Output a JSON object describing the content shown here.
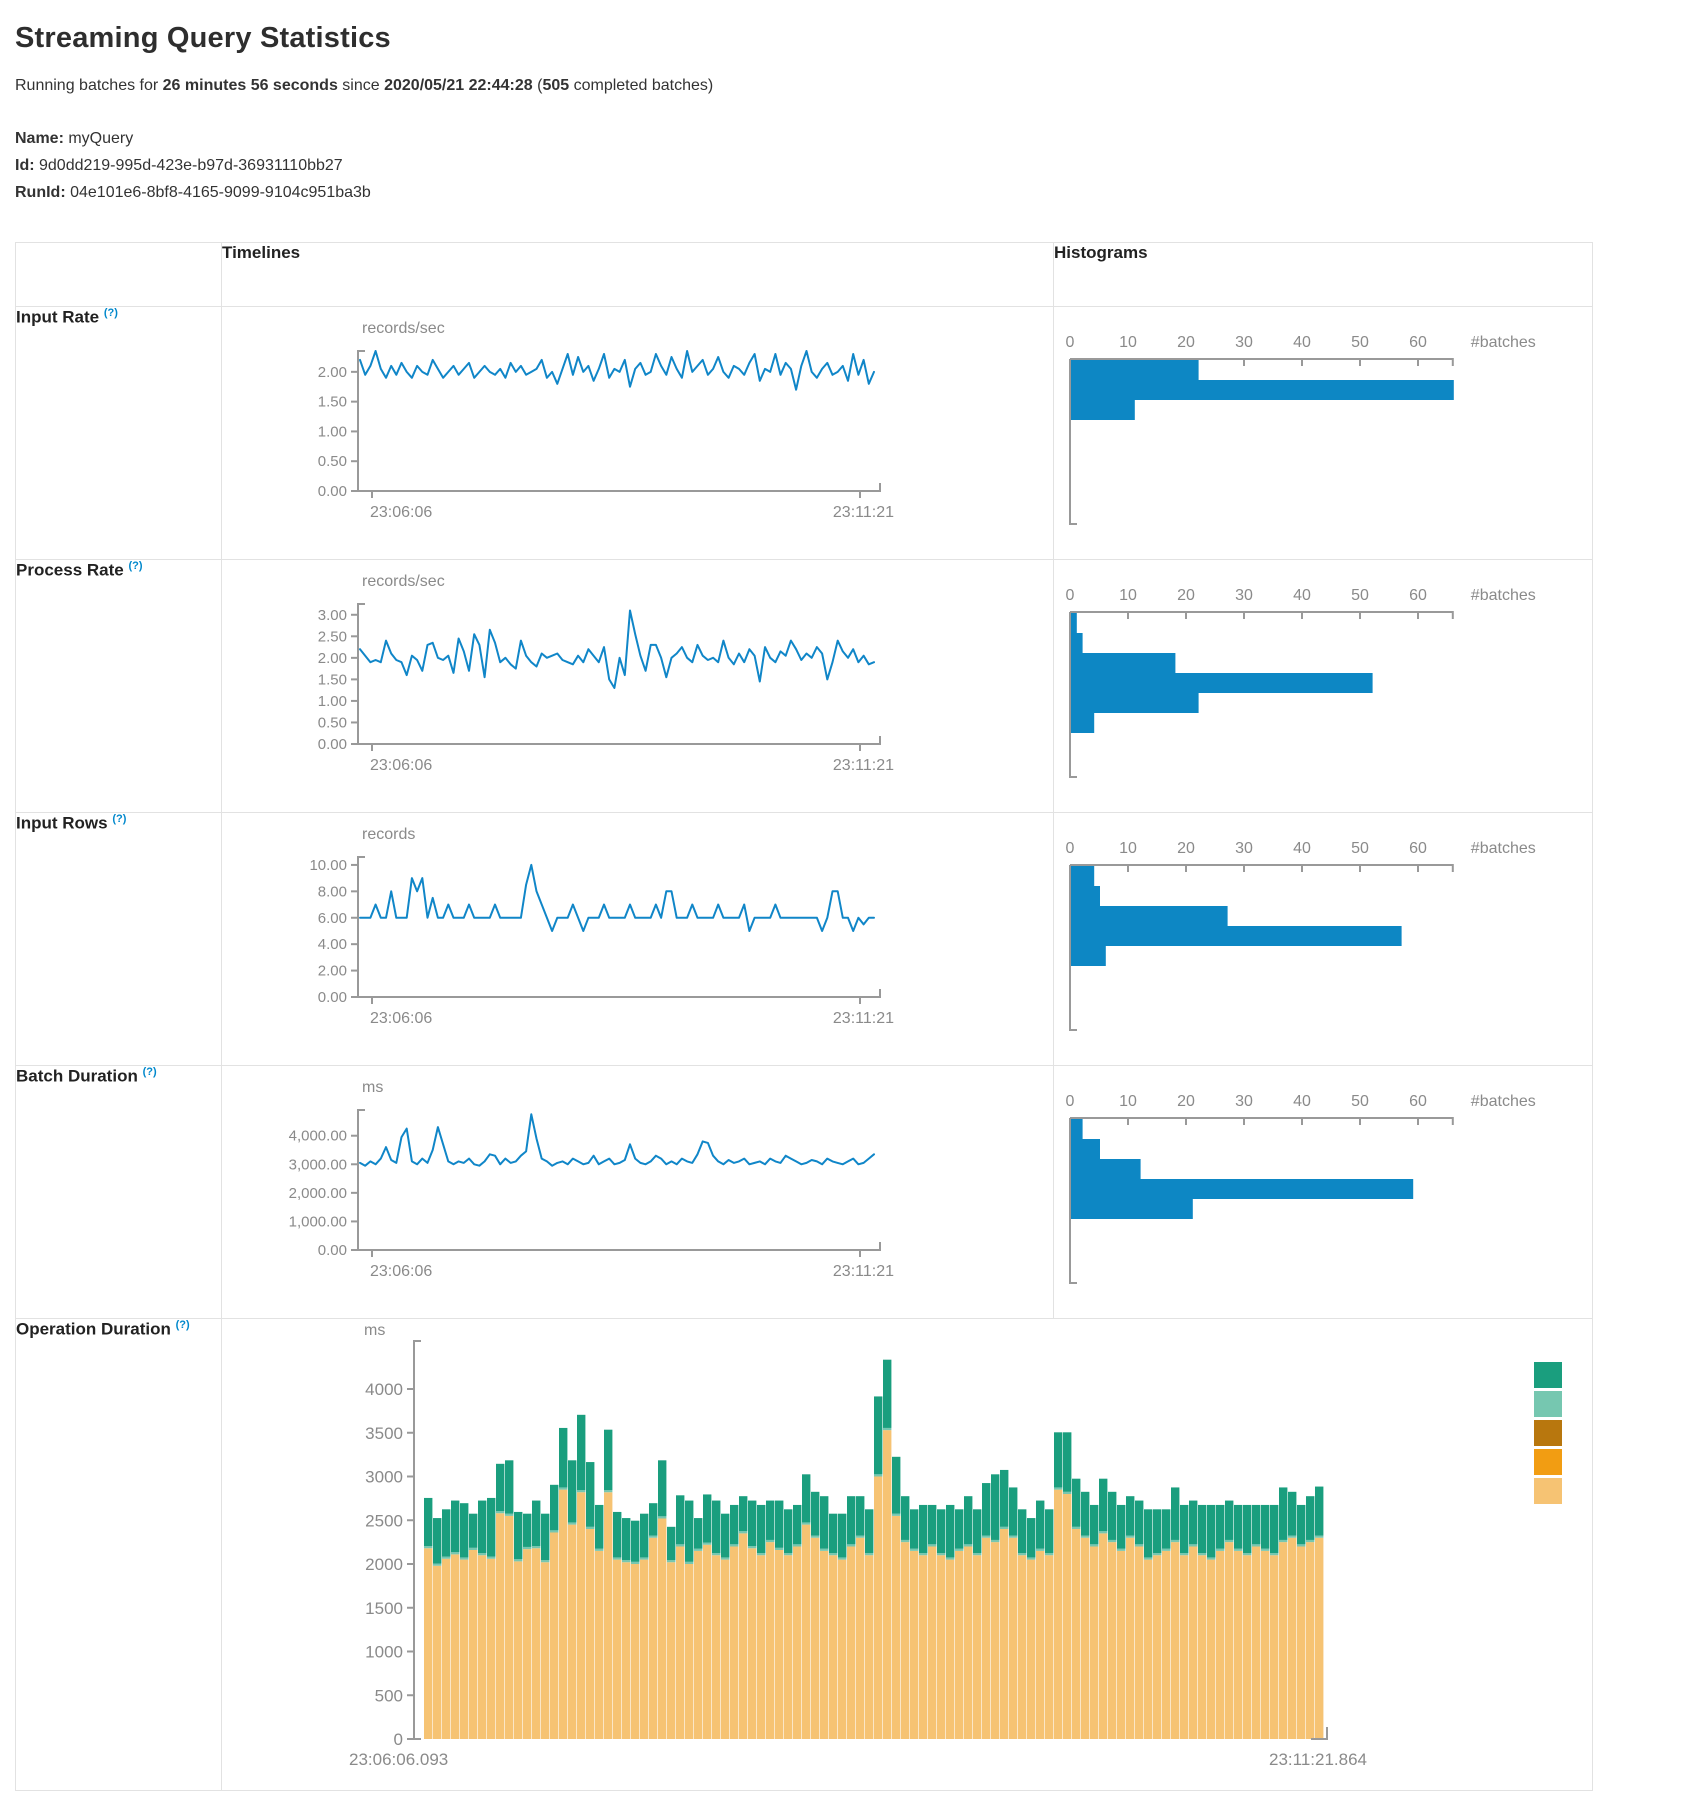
{
  "header": {
    "title": "Streaming Query Statistics",
    "running_prefix": "Running batches for ",
    "duration": "26 minutes 56 seconds",
    "since_text": " since ",
    "start_time": "2020/05/21 22:44:28",
    "paren_open": " (",
    "batches_count": "505",
    "batches_suffix": " completed batches)",
    "name_label": "Name:",
    "name_value": " myQuery",
    "id_label": "Id:",
    "id_value": " 9d0dd219-995d-423e-b97d-36931110bb27",
    "runid_label": "RunId:",
    "runid_value": " 04e101e6-8bf8-4165-9099-9104c951ba3b"
  },
  "table": {
    "col_timelines": "Timelines",
    "col_histograms": "Histograms",
    "rows": [
      {
        "label": "Input Rate",
        "help": "(?)"
      },
      {
        "label": "Process Rate",
        "help": "(?)"
      },
      {
        "label": "Input Rows",
        "help": "(?)"
      },
      {
        "label": "Batch Duration",
        "help": "(?)"
      },
      {
        "label": "Operation Duration",
        "help": "(?)"
      }
    ]
  },
  "colors": {
    "line_blue": "#1086c8",
    "bar_blue": "#0d87c4",
    "axis_gray": "#999999",
    "label_gray": "#8a8a8a",
    "help_blue": "#0088cc"
  },
  "chart_data": {
    "timelines": [
      {
        "type": "line",
        "metric": "Input Rate",
        "ylabel": "records/sec",
        "x_start": "23:06:06",
        "x_end": "23:11:21",
        "yticks": [
          0,
          0.5,
          1,
          1.5,
          2
        ],
        "ytick_labels": [
          "0.00",
          "0.50",
          "1.00",
          "1.50",
          "2.00"
        ],
        "ylim": [
          0,
          2.35
        ],
        "values": [
          2.2,
          1.95,
          2.1,
          2.35,
          2.05,
          1.9,
          2.1,
          1.95,
          2.15,
          2.0,
          1.9,
          2.1,
          2.0,
          1.95,
          2.2,
          2.05,
          1.9,
          2.0,
          2.1,
          1.95,
          2.05,
          2.15,
          1.9,
          2.0,
          2.1,
          2.0,
          1.95,
          2.05,
          1.9,
          2.15,
          2.0,
          2.1,
          1.95,
          2.0,
          2.05,
          2.2,
          1.9,
          2.0,
          1.8,
          2.05,
          2.3,
          1.95,
          2.25,
          2.0,
          2.1,
          1.85,
          2.05,
          2.3,
          1.9,
          2.05,
          2.0,
          2.2,
          1.75,
          2.05,
          2.15,
          1.95,
          2.0,
          2.3,
          2.1,
          1.95,
          2.25,
          2.05,
          1.9,
          2.35,
          2.0,
          2.1,
          2.2,
          1.95,
          2.05,
          2.25,
          2.0,
          1.9,
          2.1,
          2.05,
          1.95,
          2.15,
          2.3,
          1.85,
          2.05,
          2.0,
          2.3,
          1.95,
          2.15,
          2.05,
          1.7,
          2.1,
          2.35,
          2.0,
          1.9,
          2.05,
          2.15,
          1.95,
          2.0,
          2.1,
          1.85,
          2.3,
          1.95,
          2.2,
          1.8,
          2.0
        ]
      },
      {
        "type": "line",
        "metric": "Process Rate",
        "ylabel": "records/sec",
        "x_start": "23:06:06",
        "x_end": "23:11:21",
        "yticks": [
          0,
          0.5,
          1,
          1.5,
          2,
          2.5,
          3
        ],
        "ytick_labels": [
          "0.00",
          "0.50",
          "1.00",
          "1.50",
          "2.00",
          "2.50",
          "3.00"
        ],
        "ylim": [
          0,
          3.25
        ],
        "values": [
          2.2,
          2.05,
          1.9,
          1.95,
          1.9,
          2.4,
          2.1,
          1.95,
          1.9,
          1.6,
          2.05,
          1.95,
          1.7,
          2.3,
          2.35,
          2.0,
          1.95,
          2.05,
          1.65,
          2.45,
          2.15,
          1.7,
          2.55,
          2.3,
          1.55,
          2.65,
          2.35,
          1.9,
          2.0,
          1.85,
          1.75,
          2.4,
          2.05,
          1.9,
          1.8,
          2.1,
          2.0,
          2.05,
          2.1,
          1.95,
          1.9,
          1.85,
          2.05,
          1.9,
          2.2,
          2.05,
          1.9,
          2.25,
          1.5,
          1.3,
          2.0,
          1.6,
          3.1,
          2.55,
          2.05,
          1.7,
          2.3,
          2.3,
          2.0,
          1.55,
          2.0,
          2.1,
          2.25,
          2.0,
          1.9,
          2.3,
          2.05,
          1.95,
          2.0,
          1.9,
          2.4,
          2.0,
          1.85,
          2.1,
          1.9,
          2.2,
          2.05,
          1.45,
          2.25,
          2.0,
          1.9,
          2.15,
          2.05,
          2.4,
          2.2,
          1.95,
          2.1,
          2.0,
          2.25,
          2.1,
          1.5,
          1.9,
          2.4,
          2.15,
          2.0,
          2.2,
          1.9,
          2.05,
          1.85,
          1.9
        ]
      },
      {
        "type": "line",
        "metric": "Input Rows",
        "ylabel": "records",
        "x_start": "23:06:06",
        "x_end": "23:11:21",
        "yticks": [
          0,
          2,
          4,
          6,
          8,
          10
        ],
        "ytick_labels": [
          "0.00",
          "2.00",
          "4.00",
          "6.00",
          "8.00",
          "10.00"
        ],
        "ylim": [
          0,
          10.6
        ],
        "values": [
          6,
          6,
          6,
          7,
          6,
          6,
          8,
          6,
          6,
          6,
          9,
          8,
          9,
          6,
          7.5,
          6,
          6,
          7,
          6,
          6,
          6,
          7,
          6,
          6,
          6,
          6,
          7,
          6,
          6,
          6,
          6,
          6,
          8.5,
          10,
          8,
          7,
          6,
          5,
          6,
          6,
          6,
          7,
          6,
          5,
          6,
          6,
          6,
          7,
          6,
          6,
          6,
          6,
          7,
          6,
          6,
          6,
          6,
          7,
          6,
          8,
          8,
          6,
          6,
          6,
          7,
          6,
          6,
          6,
          6,
          7,
          6,
          6,
          6,
          6,
          7,
          5,
          6,
          6,
          6,
          6,
          7,
          6,
          6,
          6,
          6,
          6,
          6,
          6,
          6,
          5,
          6,
          8,
          8,
          6,
          6,
          5,
          6,
          5.5,
          6,
          6
        ]
      },
      {
        "type": "line",
        "metric": "Batch Duration",
        "ylabel": "ms",
        "x_start": "23:06:06",
        "x_end": "23:11:21",
        "yticks": [
          0,
          1000,
          2000,
          3000,
          4000
        ],
        "ytick_labels": [
          "0.00",
          "1,000.00",
          "2,000.00",
          "3,000.00",
          "4,000.00"
        ],
        "ylim": [
          0,
          4900
        ],
        "values": [
          3050,
          2950,
          3100,
          3000,
          3200,
          3600,
          3150,
          3050,
          3950,
          4250,
          3100,
          3000,
          3200,
          3050,
          3500,
          4300,
          3700,
          3100,
          3000,
          3100,
          3050,
          3200,
          3000,
          2950,
          3100,
          3350,
          3300,
          3000,
          3200,
          3050,
          3100,
          3300,
          3450,
          4750,
          3900,
          3200,
          3100,
          2950,
          3050,
          3100,
          3000,
          3200,
          3100,
          3000,
          3050,
          3300,
          3000,
          3100,
          3200,
          3000,
          3050,
          3150,
          3700,
          3200,
          3050,
          3000,
          3100,
          3300,
          3200,
          3000,
          3100,
          3000,
          3200,
          3100,
          3050,
          3350,
          3800,
          3750,
          3300,
          3100,
          3000,
          3150,
          3050,
          3100,
          3200,
          3000,
          3050,
          3100,
          3000,
          3200,
          3100,
          3050,
          3300,
          3200,
          3100,
          3000,
          3050,
          3150,
          3100,
          3000,
          3200,
          3100,
          3050,
          3000,
          3100,
          3200,
          3000,
          3050,
          3200,
          3350
        ]
      }
    ],
    "histograms": [
      {
        "type": "bar",
        "metric": "Input Rate",
        "xlabel": "#batches",
        "xticks": [
          0,
          10,
          20,
          30,
          40,
          50,
          60
        ],
        "xlim": [
          0,
          66
        ],
        "values": [
          22,
          66,
          11
        ]
      },
      {
        "type": "bar",
        "metric": "Process Rate",
        "xlabel": "#batches",
        "xticks": [
          0,
          10,
          20,
          30,
          40,
          50,
          60
        ],
        "xlim": [
          0,
          66
        ],
        "values": [
          1,
          2,
          18,
          52,
          22,
          4
        ]
      },
      {
        "type": "bar",
        "metric": "Input Rows",
        "xlabel": "#batches",
        "xticks": [
          0,
          10,
          20,
          30,
          40,
          50,
          60
        ],
        "xlim": [
          0,
          66
        ],
        "values": [
          4,
          5,
          27,
          57,
          6
        ]
      },
      {
        "type": "bar",
        "metric": "Batch Duration",
        "xlabel": "#batches",
        "xticks": [
          0,
          10,
          20,
          30,
          40,
          50,
          60
        ],
        "xlim": [
          0,
          66
        ],
        "values": [
          2,
          5,
          12,
          59,
          21
        ]
      }
    ],
    "operation_duration": {
      "type": "stacked-bar",
      "metric": "Operation Duration",
      "ylabel": "ms",
      "x_start": "23:06:06.093",
      "x_end": "23:11:21.864",
      "yticks": [
        0,
        500,
        1000,
        1500,
        2000,
        2500,
        3000,
        3500,
        4000
      ],
      "ylim": [
        0,
        4500
      ],
      "legend_colors": [
        "#1a9e7e",
        "#76c7b0",
        "#b8770e",
        "#f29d12",
        "#f6c373"
      ],
      "series": [
        {
          "name": "tan-bottom-segment",
          "color": "#f6c373",
          "values": [
            2180,
            1980,
            2060,
            2110,
            2050,
            2160,
            2100,
            2060,
            2580,
            2550,
            2030,
            2170,
            2180,
            2020,
            2360,
            2850,
            2450,
            2820,
            2400,
            2150,
            2820,
            2050,
            2020,
            2000,
            2050,
            2300,
            2520,
            2020,
            2200,
            2000,
            2150,
            2220,
            2100,
            2050,
            2200,
            2350,
            2180,
            2100,
            2250,
            2160,
            2100,
            2200,
            2450,
            2300,
            2150,
            2100,
            2050,
            2200,
            2300,
            2100,
            3000,
            3530,
            2550,
            2250,
            2150,
            2100,
            2200,
            2100,
            2050,
            2150,
            2200,
            2100,
            2300,
            2250,
            2400,
            2300,
            2100,
            2050,
            2150,
            2100,
            2850,
            2800,
            2400,
            2300,
            2200,
            2350,
            2250,
            2150,
            2300,
            2200,
            2050,
            2100,
            2150,
            2250,
            2100,
            2200,
            2100,
            2050,
            2150,
            2250,
            2150,
            2100,
            2200,
            2150,
            2100,
            2250,
            2300,
            2200,
            2250,
            2300
          ]
        },
        {
          "name": "lightgreen-sliver-segment",
          "color": "#76c7b0",
          "value_constant": 25
        },
        {
          "name": "teal-top-segment",
          "color": "#1a9e7e",
          "values": [
            550,
            520,
            540,
            590,
            620,
            390,
            600,
            670,
            540,
            610,
            540,
            380,
            520,
            530,
            520,
            680,
            710,
            860,
            740,
            500,
            690,
            520,
            480,
            470,
            500,
            370,
            640,
            380,
            560,
            700,
            350,
            550,
            600,
            500,
            450,
            400,
            520,
            550,
            450,
            540,
            500,
            450,
            550,
            500,
            600,
            450,
            500,
            550,
            450,
            500,
            890,
            780,
            650,
            500,
            450,
            550,
            450,
            500,
            600,
            450,
            550,
            500,
            600,
            750,
            650,
            550,
            500,
            450,
            550,
            500,
            630,
            680,
            550,
            500,
            450,
            600,
            550,
            500,
            450,
            500,
            550,
            500,
            450,
            600,
            550,
            500,
            550,
            600,
            500,
            450,
            500,
            550,
            450,
            500,
            550,
            600,
            500,
            450,
            500,
            560
          ]
        }
      ]
    }
  }
}
